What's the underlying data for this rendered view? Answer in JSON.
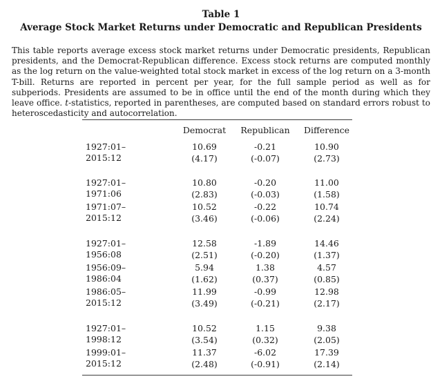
{
  "table": {
    "label": "Table 1",
    "title": "Average Stock Market Returns under Democratic and Republican Presidents",
    "caption_parts": [
      "This table reports average excess stock market returns under Democratic presidents, Republican presidents, and the Democrat-Republican difference. Excess stock returns are computed monthly as the log return on the value-weighted total stock market in excess of the log return on a 3-month T-bill. Returns are reported in percent per year, for the full sample period as well as for subperiods. Presidents are assumed to be in office until the end of the month during which they leave office. ",
      "t",
      "-statistics, reported in parentheses, are computed based on standard errors robust to heteroscedasticity and autocorrelation."
    ],
    "columns": [
      "Democrat",
      "Republican",
      "Difference"
    ],
    "rows": [
      {
        "period": "1927:01–2015:12",
        "values": [
          "10.69",
          "-0.21",
          "10.90"
        ],
        "tstats": [
          "(4.17)",
          "(-0.07)",
          "(2.73)"
        ]
      },
      {
        "period": "1927:01–1971:06",
        "values": [
          "10.80",
          "-0.20",
          "11.00"
        ],
        "tstats": [
          "(2.83)",
          "(-0.03)",
          "(1.58)"
        ]
      },
      {
        "period": "1971:07–2015:12",
        "values": [
          "10.52",
          "-0.22",
          "10.74"
        ],
        "tstats": [
          "(3.46)",
          "(-0.06)",
          "(2.24)"
        ]
      },
      {
        "period": "1927:01–1956:08",
        "values": [
          "12.58",
          "-1.89",
          "14.46"
        ],
        "tstats": [
          "(2.51)",
          "(-0.20)",
          "(1.37)"
        ]
      },
      {
        "period": "1956:09–1986:04",
        "values": [
          "5.94",
          "1.38",
          "4.57"
        ],
        "tstats": [
          "(1.62)",
          "(0.37)",
          "(0.85)"
        ]
      },
      {
        "period": "1986:05–2015:12",
        "values": [
          "11.99",
          "-0.99",
          "12.98"
        ],
        "tstats": [
          "(3.49)",
          "(-0.21)",
          "(2.17)"
        ]
      },
      {
        "period": "1927:01–1998:12",
        "values": [
          "10.52",
          "1.15",
          "9.38"
        ],
        "tstats": [
          "(3.54)",
          "(0.32)",
          "(2.05)"
        ]
      },
      {
        "period": "1999:01–2015:12",
        "values": [
          "11.37",
          "-6.02",
          "17.39"
        ],
        "tstats": [
          "(2.48)",
          "(-0.91)",
          "(2.14)"
        ]
      }
    ]
  }
}
